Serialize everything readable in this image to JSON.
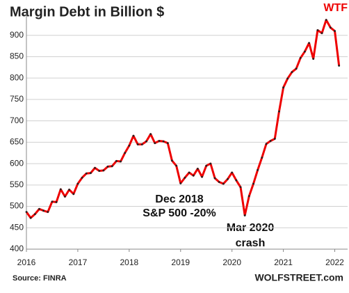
{
  "chart_data": {
    "type": "line",
    "title": "Margin Debt in Billion $",
    "annotations": [
      "WTF",
      "Dec 2018",
      "S&P 500 -20%",
      "Mar 2020",
      "crash"
    ],
    "source": "Source: FINRA",
    "brand": "WOLFSTREET.com",
    "x": [
      2016,
      2016.083,
      2016.167,
      2016.25,
      2016.333,
      2016.417,
      2016.5,
      2016.583,
      2016.667,
      2016.75,
      2016.833,
      2016.917,
      2017,
      2017.083,
      2017.167,
      2017.25,
      2017.333,
      2017.417,
      2017.5,
      2017.583,
      2017.667,
      2017.75,
      2017.833,
      2017.917,
      2018,
      2018.083,
      2018.167,
      2018.25,
      2018.333,
      2018.417,
      2018.5,
      2018.583,
      2018.667,
      2018.75,
      2018.833,
      2018.917,
      2019,
      2019.083,
      2019.167,
      2019.25,
      2019.333,
      2019.417,
      2019.5,
      2019.583,
      2019.667,
      2019.75,
      2019.833,
      2019.917,
      2020,
      2020.083,
      2020.167,
      2020.25,
      2020.333,
      2020.417,
      2020.5,
      2020.583,
      2020.667,
      2020.75,
      2020.833,
      2020.917,
      2021,
      2021.083,
      2021.167,
      2021.25,
      2021.333,
      2021.417,
      2021.5,
      2021.583,
      2021.667,
      2021.75,
      2021.833,
      2021.917,
      2022,
      2022.083
    ],
    "series": [
      {
        "name": "Margin Debt",
        "color": "#ee0000",
        "values": [
          487,
          473,
          482,
          494,
          490,
          487,
          511,
          510,
          540,
          523,
          539,
          529,
          553,
          567,
          577,
          578,
          590,
          583,
          584,
          593,
          594,
          606,
          605,
          625,
          642,
          665,
          645,
          645,
          652,
          669,
          648,
          653,
          652,
          648,
          607,
          595,
          554,
          567,
          579,
          572,
          588,
          569,
          595,
          600,
          566,
          557,
          553,
          564,
          579,
          561,
          545,
          479,
          524,
          553,
          585,
          614,
          646,
          653,
          658,
          722,
          778,
          799,
          814,
          822,
          847,
          862,
          882,
          845,
          912,
          905,
          936,
          918,
          910,
          829
        ]
      }
    ],
    "xlim": [
      2016,
      2022.25
    ],
    "xticks": [
      2016,
      2017,
      2018,
      2019,
      2020,
      2021,
      2022
    ],
    "ylim": [
      400,
      950
    ],
    "yticks": [
      400,
      450,
      500,
      550,
      600,
      650,
      700,
      750,
      800,
      850,
      900
    ],
    "grid": true
  }
}
